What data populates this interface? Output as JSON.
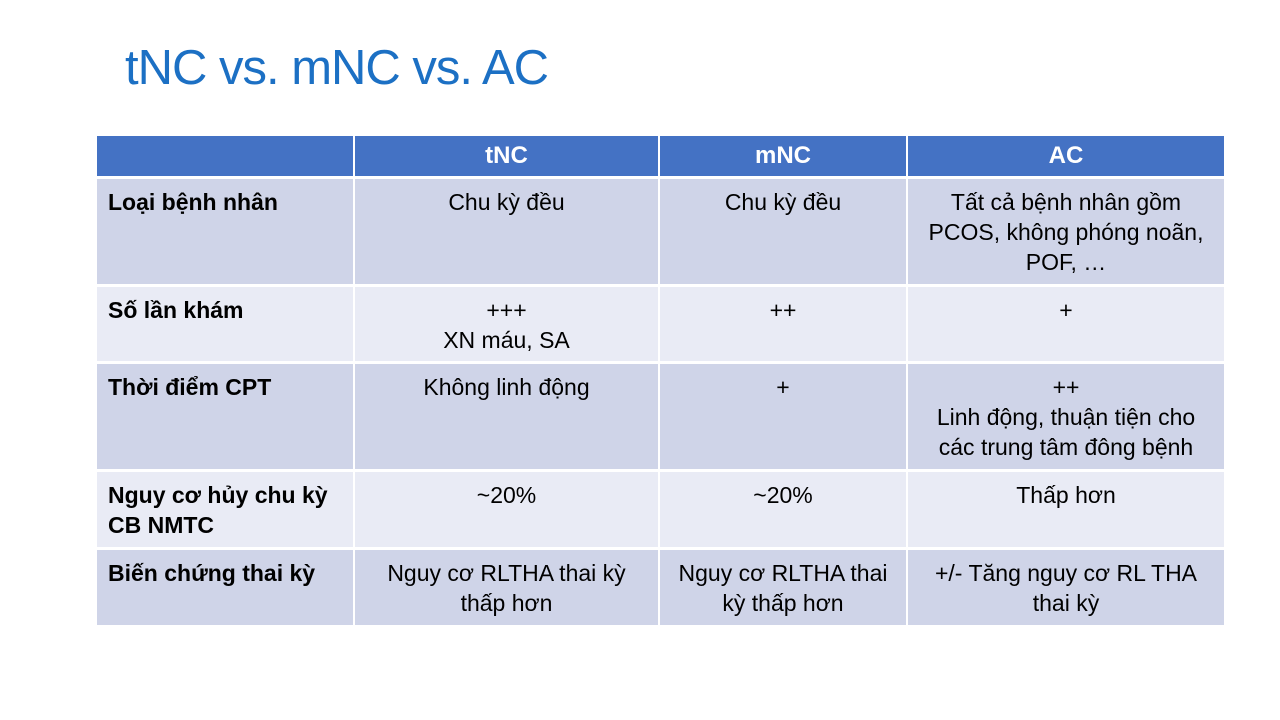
{
  "slide": {
    "title": "tNC vs. mNC vs. AC"
  },
  "colors": {
    "title_text": "#1C70C4",
    "header_bg": "#4472C4",
    "header_text": "#FFFFFF",
    "band_dark": "#CFD4E8",
    "band_light": "#E9EBF5",
    "body_text": "#000000",
    "slide_bg": "#FFFFFF"
  },
  "table": {
    "headers": [
      "",
      "tNC",
      "mNC",
      "AC"
    ],
    "rows": [
      {
        "label": "Loại bệnh nhân",
        "tnc": "Chu kỳ đều",
        "mnc": "Chu kỳ đều",
        "ac": "Tất cả bệnh nhân gồm PCOS, không phóng noãn, POF, …"
      },
      {
        "label": "Số lần khám",
        "tnc": "+++\nXN máu, SA",
        "mnc": "++",
        "ac": "+"
      },
      {
        "label": "Thời điểm CPT",
        "tnc": "Không linh động",
        "mnc": "+",
        "ac": "++\nLinh động, thuận tiện cho các trung tâm đông bệnh"
      },
      {
        "label": "Nguy cơ hủy chu kỳ CB NMTC",
        "tnc": "~20%",
        "mnc": "~20%",
        "ac": "Thấp hơn"
      },
      {
        "label": "Biến chứng thai kỳ",
        "tnc": "Nguy cơ RLTHA thai kỳ thấp hơn",
        "mnc": "Nguy cơ RLTHA thai kỳ thấp hơn",
        "ac": "+/- Tăng nguy cơ RL THA thai kỳ"
      }
    ]
  }
}
